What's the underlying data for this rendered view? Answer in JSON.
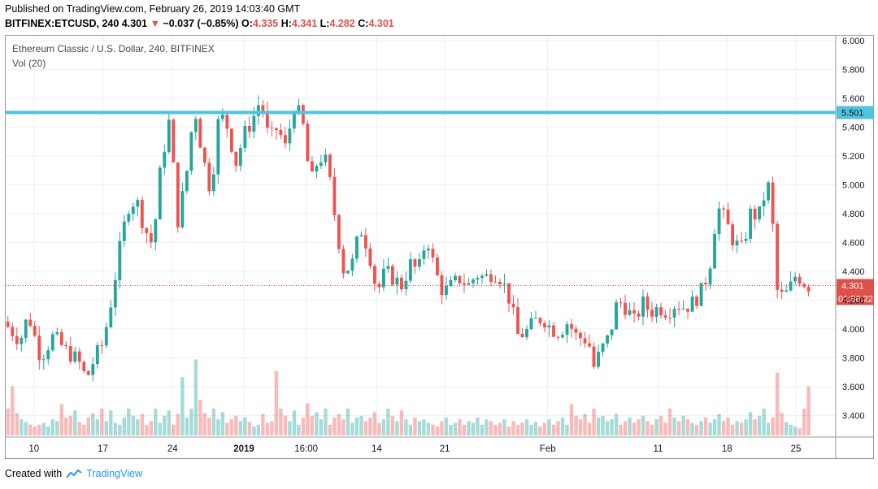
{
  "header": {
    "published": "Published on TradingView.com, February 26, 2019 14:03:40 GMT",
    "symbol": "BITFINEX:ETCUSD, 240",
    "last": "4.301",
    "change_arrow": "▼",
    "change": "−0.037 (−0.85%)",
    "o_label": "O:",
    "o_value": "4.335",
    "h_label": "H:",
    "h_value": "4.341",
    "l_label": "L:",
    "l_value": "4.282",
    "c_label": "C:",
    "c_value": "4.301"
  },
  "legend": {
    "title": "Ethereum Classic / U.S. Dollar, 240, BITFINEX",
    "volume": "Vol (20)"
  },
  "footer": {
    "created_with": "Created with",
    "brand": "TradingView",
    "brand_icon": "tradingview-cloud-icon"
  },
  "colors": {
    "up": "#26a69a",
    "down": "#ef5350",
    "resistance": "#4fc3dc",
    "last_price": "#e0504a",
    "grid": "#eceff4"
  },
  "chart_data": {
    "type": "candlestick",
    "title": "Ethereum Classic / U.S. Dollar, 240, BITFINEX",
    "ylim": [
      3.25,
      6.0
    ],
    "y_ticks": [
      "6.000",
      "5.800",
      "5.600",
      "5.400",
      "5.200",
      "5.000",
      "4.800",
      "4.600",
      "4.400",
      "4.200",
      "4.000",
      "3.800",
      "3.600",
      "3.400"
    ],
    "x_ticks": [
      "10",
      "17",
      "24",
      "2019",
      "16:00",
      "14",
      "21",
      "Feb",
      "11",
      "18",
      "25"
    ],
    "x_tick_pos": [
      0.034,
      0.117,
      0.201,
      0.287,
      0.362,
      0.447,
      0.529,
      0.653,
      0.786,
      0.869,
      0.952
    ],
    "resistance_level": {
      "value": 5.501,
      "label": "5.501"
    },
    "last_price": {
      "value": 4.301,
      "label": "4.301",
      "countdown": "01:56:22"
    },
    "path": [
      [
        0.0,
        4.05
      ],
      [
        0.02,
        3.92
      ],
      [
        0.03,
        4.1
      ],
      [
        0.045,
        3.8
      ],
      [
        0.06,
        3.95
      ],
      [
        0.075,
        3.85
      ],
      [
        0.09,
        3.78
      ],
      [
        0.1,
        3.65
      ],
      [
        0.11,
        3.8
      ],
      [
        0.12,
        3.9
      ],
      [
        0.13,
        4.2
      ],
      [
        0.14,
        4.55
      ],
      [
        0.15,
        4.85
      ],
      [
        0.16,
        4.9
      ],
      [
        0.17,
        4.7
      ],
      [
        0.18,
        4.58
      ],
      [
        0.19,
        5.15
      ],
      [
        0.2,
        5.45
      ],
      [
        0.21,
        4.75
      ],
      [
        0.22,
        5.05
      ],
      [
        0.23,
        5.55
      ],
      [
        0.24,
        5.2
      ],
      [
        0.25,
        4.95
      ],
      [
        0.26,
        5.5
      ],
      [
        0.27,
        5.4
      ],
      [
        0.28,
        5.15
      ],
      [
        0.29,
        5.35
      ],
      [
        0.3,
        5.45
      ],
      [
        0.31,
        5.6
      ],
      [
        0.32,
        5.3
      ],
      [
        0.33,
        5.4
      ],
      [
        0.34,
        5.25
      ],
      [
        0.35,
        5.55
      ],
      [
        0.36,
        5.45
      ],
      [
        0.37,
        5.0
      ],
      [
        0.38,
        5.2
      ],
      [
        0.39,
        5.15
      ],
      [
        0.4,
        4.75
      ],
      [
        0.41,
        4.4
      ],
      [
        0.42,
        4.45
      ],
      [
        0.43,
        4.7
      ],
      [
        0.44,
        4.55
      ],
      [
        0.45,
        4.25
      ],
      [
        0.46,
        4.4
      ],
      [
        0.47,
        4.35
      ],
      [
        0.48,
        4.3
      ],
      [
        0.49,
        4.45
      ],
      [
        0.5,
        4.4
      ],
      [
        0.51,
        4.65
      ],
      [
        0.52,
        4.4
      ],
      [
        0.53,
        4.25
      ],
      [
        0.54,
        4.3
      ],
      [
        0.55,
        4.35
      ],
      [
        0.56,
        4.3
      ],
      [
        0.57,
        4.38
      ],
      [
        0.58,
        4.35
      ],
      [
        0.59,
        4.4
      ],
      [
        0.6,
        4.35
      ],
      [
        0.61,
        4.2
      ],
      [
        0.62,
        3.95
      ],
      [
        0.63,
        3.98
      ],
      [
        0.64,
        4.05
      ],
      [
        0.65,
        4.08
      ],
      [
        0.66,
        4.0
      ],
      [
        0.67,
        3.98
      ],
      [
        0.68,
        4.05
      ],
      [
        0.69,
        3.95
      ],
      [
        0.7,
        3.93
      ],
      [
        0.705,
        3.92
      ],
      [
        0.71,
        3.72
      ],
      [
        0.72,
        3.85
      ],
      [
        0.73,
        3.95
      ],
      [
        0.74,
        4.2
      ],
      [
        0.75,
        4.15
      ],
      [
        0.76,
        4.05
      ],
      [
        0.77,
        4.18
      ],
      [
        0.78,
        4.12
      ],
      [
        0.79,
        4.15
      ],
      [
        0.8,
        4.12
      ],
      [
        0.81,
        4.18
      ],
      [
        0.82,
        4.15
      ],
      [
        0.83,
        4.18
      ],
      [
        0.84,
        4.25
      ],
      [
        0.85,
        4.4
      ],
      [
        0.86,
        4.85
      ],
      [
        0.87,
        4.75
      ],
      [
        0.88,
        4.6
      ],
      [
        0.89,
        4.55
      ],
      [
        0.9,
        4.8
      ],
      [
        0.91,
        4.78
      ],
      [
        0.92,
        5.0
      ],
      [
        0.925,
        4.95
      ],
      [
        0.93,
        4.3
      ],
      [
        0.935,
        4.22
      ],
      [
        0.945,
        4.25
      ],
      [
        0.955,
        4.38
      ],
      [
        0.965,
        4.32
      ],
      [
        0.97,
        4.3
      ]
    ],
    "volume": [
      0.3,
      0.55,
      0.25,
      0.18,
      0.15,
      0.12,
      0.1,
      0.12,
      0.14,
      0.1,
      0.18,
      0.16,
      0.35,
      0.2,
      0.22,
      0.28,
      0.15,
      0.12,
      0.2,
      0.25,
      0.18,
      0.3,
      0.16,
      0.28,
      0.14,
      0.12,
      0.2,
      0.3,
      0.22,
      0.18,
      0.24,
      0.12,
      0.16,
      0.3,
      0.14,
      0.22,
      0.28,
      0.12,
      0.24,
      0.65,
      0.2,
      0.3,
      0.85,
      0.4,
      0.25,
      0.2,
      0.3,
      0.18,
      0.26,
      0.14,
      0.18,
      0.22,
      0.16,
      0.2,
      0.15,
      0.1,
      0.12,
      0.24,
      0.14,
      0.16,
      0.72,
      0.3,
      0.22,
      0.16,
      0.28,
      0.12,
      0.2,
      0.36,
      0.22,
      0.26,
      0.18,
      0.3,
      0.12,
      0.2,
      0.24,
      0.18,
      0.3,
      0.14,
      0.2,
      0.22,
      0.16,
      0.2,
      0.26,
      0.14,
      0.18,
      0.3,
      0.22,
      0.16,
      0.28,
      0.18,
      0.12,
      0.2,
      0.16,
      0.18,
      0.14,
      0.12,
      0.1,
      0.16,
      0.2,
      0.12,
      0.14,
      0.18,
      0.12,
      0.16,
      0.14,
      0.2,
      0.12,
      0.18,
      0.16,
      0.12,
      0.14,
      0.18,
      0.1,
      0.16,
      0.12,
      0.14,
      0.18,
      0.12,
      0.15,
      0.1,
      0.14,
      0.18,
      0.12,
      0.16,
      0.2,
      0.12,
      0.35,
      0.22,
      0.18,
      0.24,
      0.14,
      0.3,
      0.2,
      0.22,
      0.16,
      0.18,
      0.24,
      0.12,
      0.16,
      0.2,
      0.14,
      0.18,
      0.22,
      0.16,
      0.12,
      0.18,
      0.22,
      0.14,
      0.3,
      0.2,
      0.16,
      0.22,
      0.18,
      0.14,
      0.12,
      0.16,
      0.2,
      0.14,
      0.18,
      0.24,
      0.16,
      0.2,
      0.12,
      0.16,
      0.14,
      0.18,
      0.26,
      0.18,
      0.22,
      0.3,
      0.14,
      0.2,
      0.7,
      0.25,
      0.15,
      0.12,
      0.1,
      0.08
    ]
  }
}
